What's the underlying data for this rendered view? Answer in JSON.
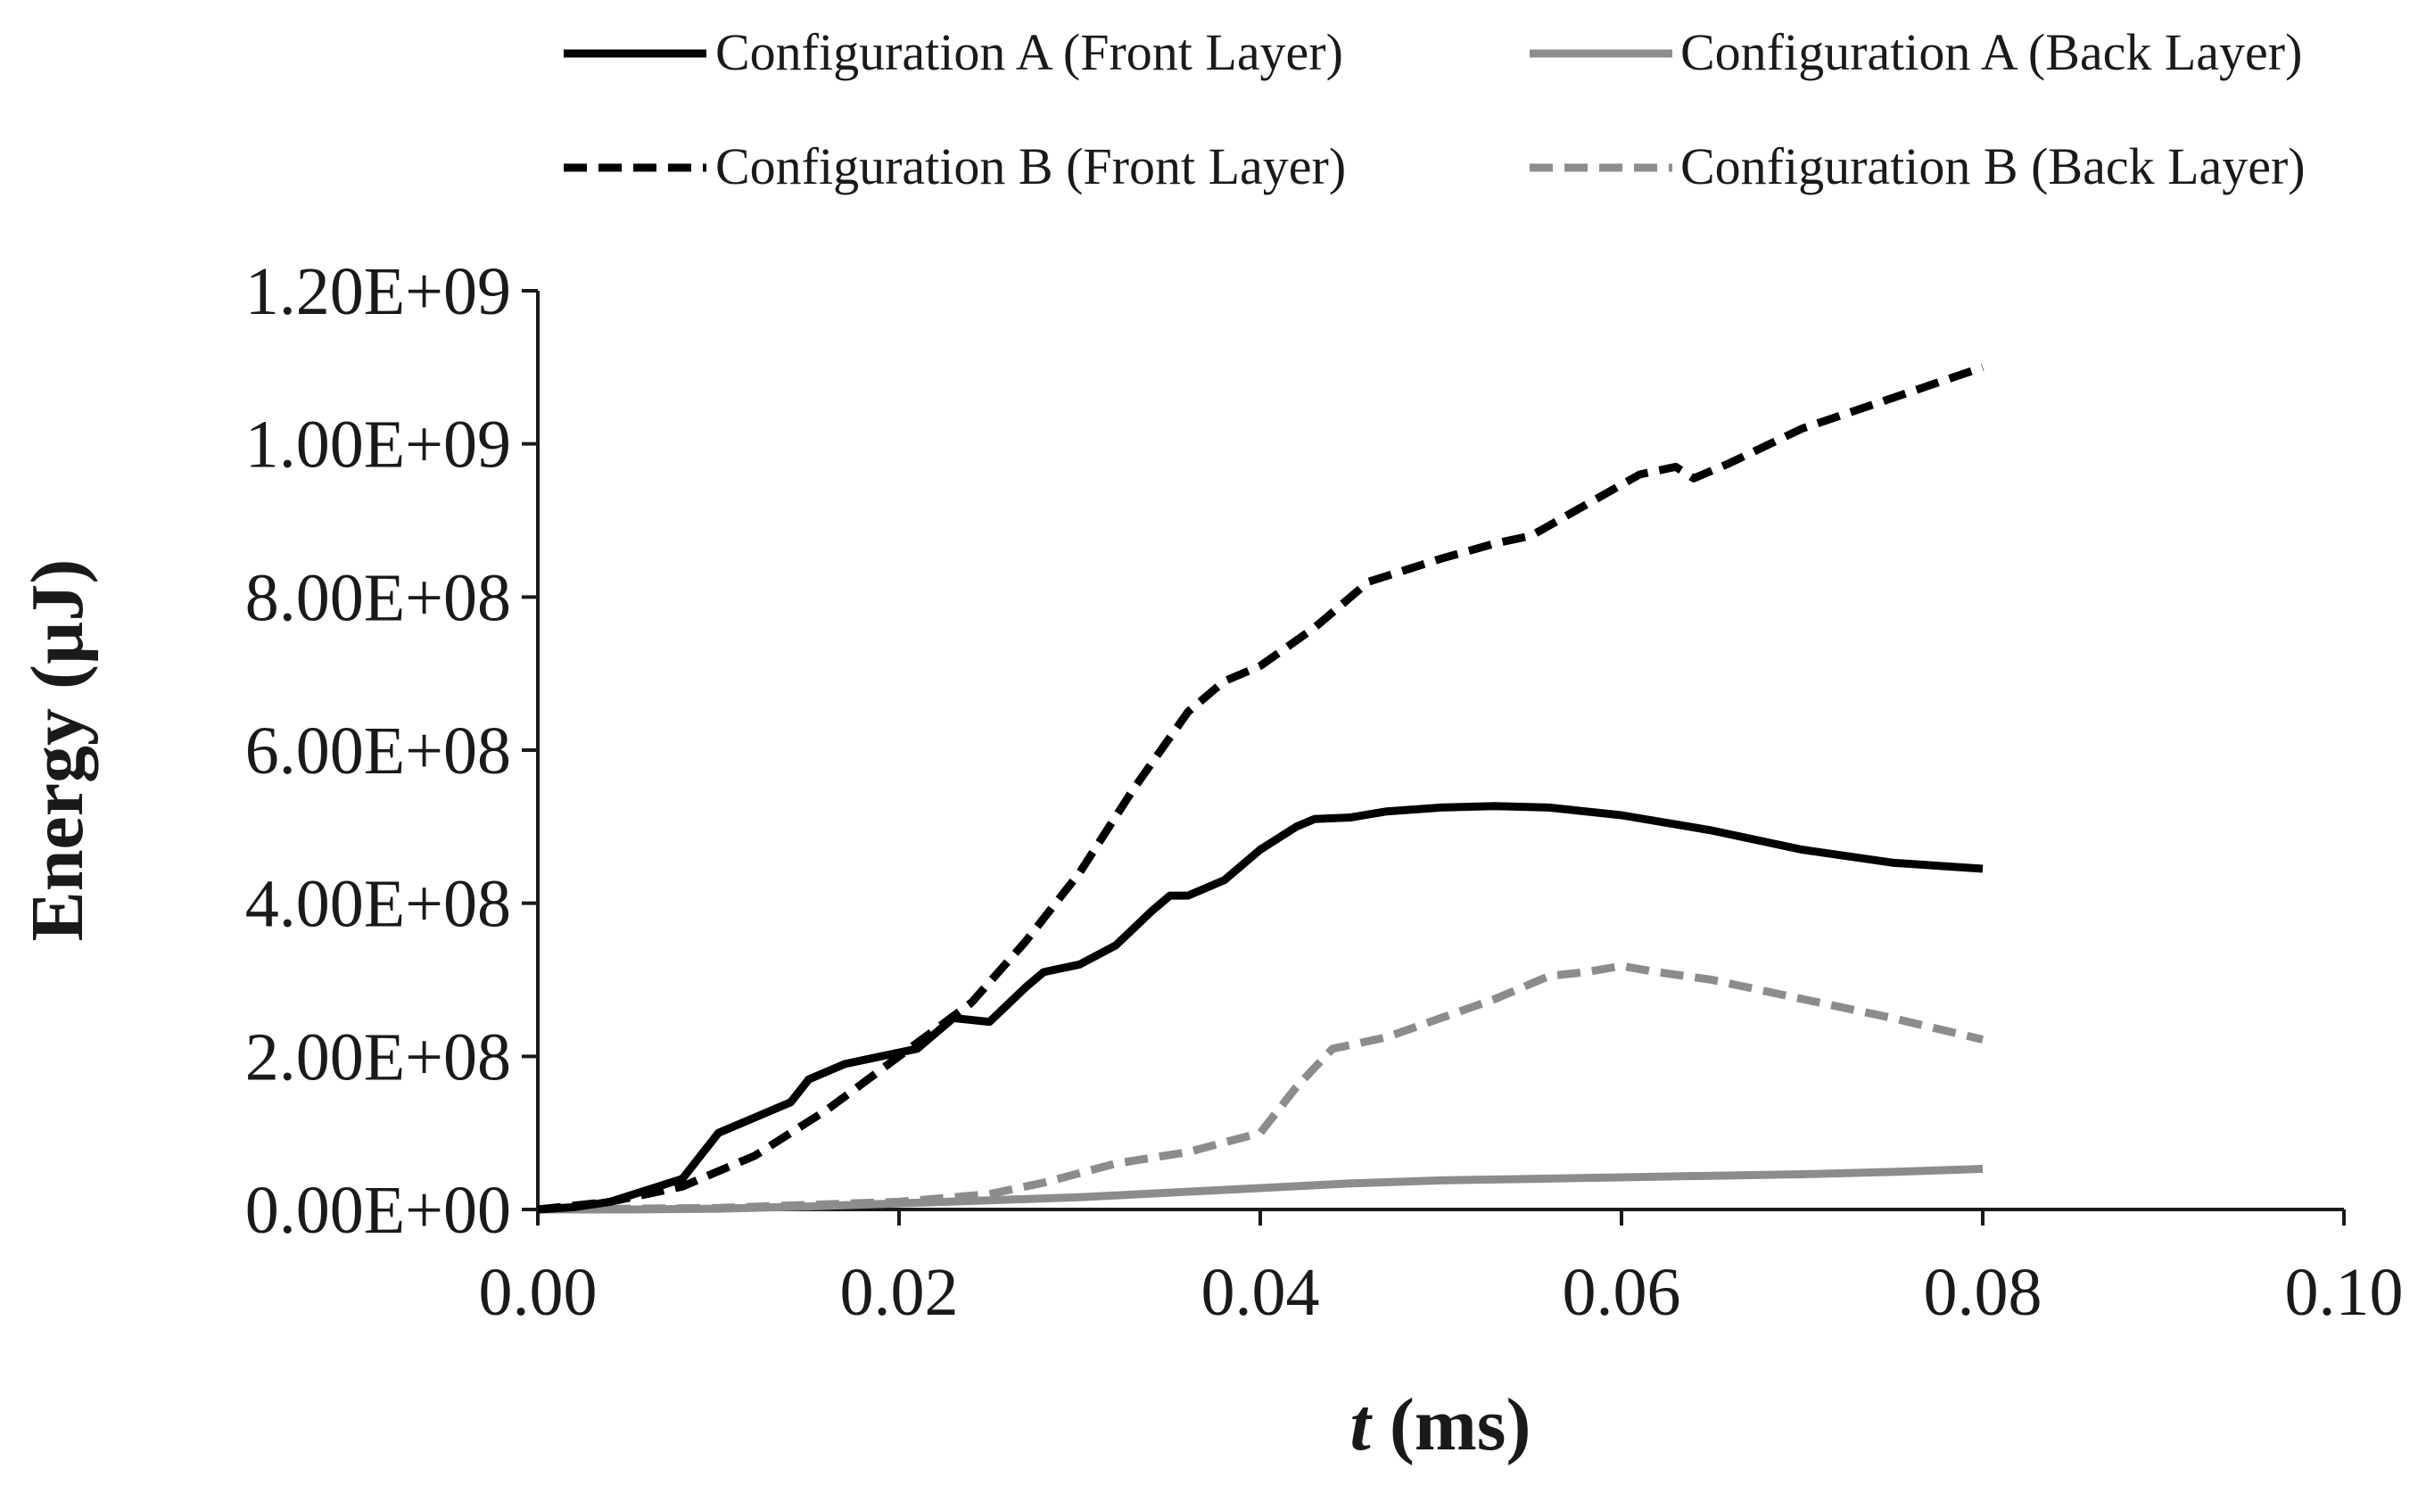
{
  "chart_data": {
    "type": "line",
    "title": "",
    "xlabel_italic": "t",
    "xlabel_rest": " (ms)",
    "ylabel": "Energy (µJ)",
    "xlim": [
      0,
      0.1
    ],
    "ylim": [
      0,
      1200000000
    ],
    "x_ticks": [
      0,
      0.02,
      0.04,
      0.06,
      0.08,
      0.1
    ],
    "x_tick_labels": [
      "0.00",
      "0.02",
      "0.04",
      "0.06",
      "0.08",
      "0.10"
    ],
    "y_ticks": [
      0,
      200000000,
      400000000,
      600000000,
      800000000,
      1000000000,
      1200000000
    ],
    "y_tick_labels": [
      "0.00E+00",
      "2.00E+08",
      "4.00E+08",
      "6.00E+08",
      "8.00E+08",
      "1.00E+09",
      "1.20E+09"
    ],
    "grid": false,
    "legend_position": "top",
    "series": [
      {
        "name": "Configuration A (Front Layer)",
        "color": "#000000",
        "dash": "solid",
        "x": [
          0,
          0.002,
          0.004,
          0.006,
          0.008,
          0.009,
          0.01,
          0.012,
          0.014,
          0.015,
          0.017,
          0.019,
          0.021,
          0.023,
          0.025,
          0.027,
          0.028,
          0.03,
          0.032,
          0.034,
          0.035,
          0.036,
          0.038,
          0.04,
          0.042,
          0.043,
          0.045,
          0.047,
          0.05,
          0.053,
          0.056,
          0.06,
          0.065,
          0.07,
          0.075,
          0.08
        ],
        "y": [
          0,
          3000000,
          10000000,
          25000000,
          40000000,
          70000000,
          100000000,
          120000000,
          140000000,
          170000000,
          190000000,
          200000000,
          210000000,
          250000000,
          245000000,
          290000000,
          310000000,
          320000000,
          345000000,
          390000000,
          410000000,
          410000000,
          430000000,
          470000000,
          500000000,
          510000000,
          512000000,
          520000000,
          525000000,
          527000000,
          525000000,
          515000000,
          495000000,
          470000000,
          453000000,
          445000000
        ]
      },
      {
        "name": "Configuration A (Back Layer)",
        "color": "#8c8c8c",
        "dash": "solid",
        "x": [
          0,
          0.005,
          0.01,
          0.015,
          0.02,
          0.025,
          0.03,
          0.035,
          0.04,
          0.045,
          0.05,
          0.055,
          0.06,
          0.065,
          0.07,
          0.075,
          0.08
        ],
        "y": [
          0,
          0,
          1000000,
          4000000,
          8000000,
          12000000,
          16000000,
          22000000,
          28000000,
          34000000,
          38000000,
          40000000,
          42000000,
          44000000,
          46000000,
          49000000,
          53000000
        ]
      },
      {
        "name": "Configuration B (Front Layer)",
        "color": "#000000",
        "dash": "dashed",
        "x": [
          0,
          0.004,
          0.008,
          0.012,
          0.016,
          0.02,
          0.024,
          0.027,
          0.03,
          0.033,
          0.036,
          0.038,
          0.04,
          0.043,
          0.046,
          0.05,
          0.053,
          0.055,
          0.058,
          0.061,
          0.063,
          0.064,
          0.066,
          0.07,
          0.075,
          0.08
        ],
        "y": [
          0,
          10000000,
          30000000,
          70000000,
          130000000,
          200000000,
          270000000,
          350000000,
          440000000,
          550000000,
          650000000,
          690000000,
          710000000,
          760000000,
          820000000,
          850000000,
          870000000,
          880000000,
          920000000,
          960000000,
          970000000,
          955000000,
          975000000,
          1020000000,
          1060000000,
          1100000000
        ]
      },
      {
        "name": "Configuration B (Back Layer)",
        "color": "#8c8c8c",
        "dash": "dashed",
        "x": [
          0,
          0.01,
          0.02,
          0.025,
          0.028,
          0.032,
          0.036,
          0.04,
          0.042,
          0.044,
          0.047,
          0.05,
          0.053,
          0.056,
          0.058,
          0.06,
          0.062,
          0.065,
          0.07,
          0.075,
          0.08
        ],
        "y": [
          0,
          2000000,
          10000000,
          20000000,
          35000000,
          60000000,
          75000000,
          100000000,
          160000000,
          210000000,
          225000000,
          250000000,
          275000000,
          305000000,
          310000000,
          318000000,
          310000000,
          300000000,
          275000000,
          250000000,
          222000000
        ]
      }
    ]
  }
}
